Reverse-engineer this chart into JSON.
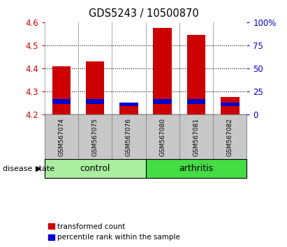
{
  "title": "GDS5243 / 10500870",
  "samples": [
    "GSM567074",
    "GSM567075",
    "GSM567076",
    "GSM567080",
    "GSM567081",
    "GSM567082"
  ],
  "red_bottom": [
    4.2,
    4.2,
    4.2,
    4.2,
    4.2,
    4.2
  ],
  "red_top": [
    4.41,
    4.43,
    4.24,
    4.575,
    4.545,
    4.275
  ],
  "blue_bottom": [
    4.245,
    4.245,
    4.235,
    4.245,
    4.245,
    4.235
  ],
  "blue_top": [
    4.265,
    4.265,
    4.252,
    4.265,
    4.265,
    4.25
  ],
  "ylim": [
    4.2,
    4.6
  ],
  "yticks_left": [
    4.2,
    4.3,
    4.4,
    4.5,
    4.6
  ],
  "yticks_right": [
    0,
    25,
    50,
    75,
    100
  ],
  "ytick_labels_right": [
    "0",
    "25",
    "50",
    "75",
    "100%"
  ],
  "disease_state_label": "disease state",
  "bar_color_red": "#CC0000",
  "bar_color_blue": "#0000CC",
  "legend_red": "transformed count",
  "legend_blue": "percentile rank within the sample",
  "plot_bg": "#FFFFFF",
  "tick_label_color_left": "#CC0000",
  "tick_label_color_right": "#0000CC",
  "bar_width": 0.55,
  "xticklabel_bg": "#C8C8C8",
  "control_color": "#AAEEA0",
  "arthritis_color": "#44DD44",
  "group_info": [
    {
      "start": 0,
      "end": 2,
      "label": "control"
    },
    {
      "start": 3,
      "end": 5,
      "label": "arthritis"
    }
  ]
}
